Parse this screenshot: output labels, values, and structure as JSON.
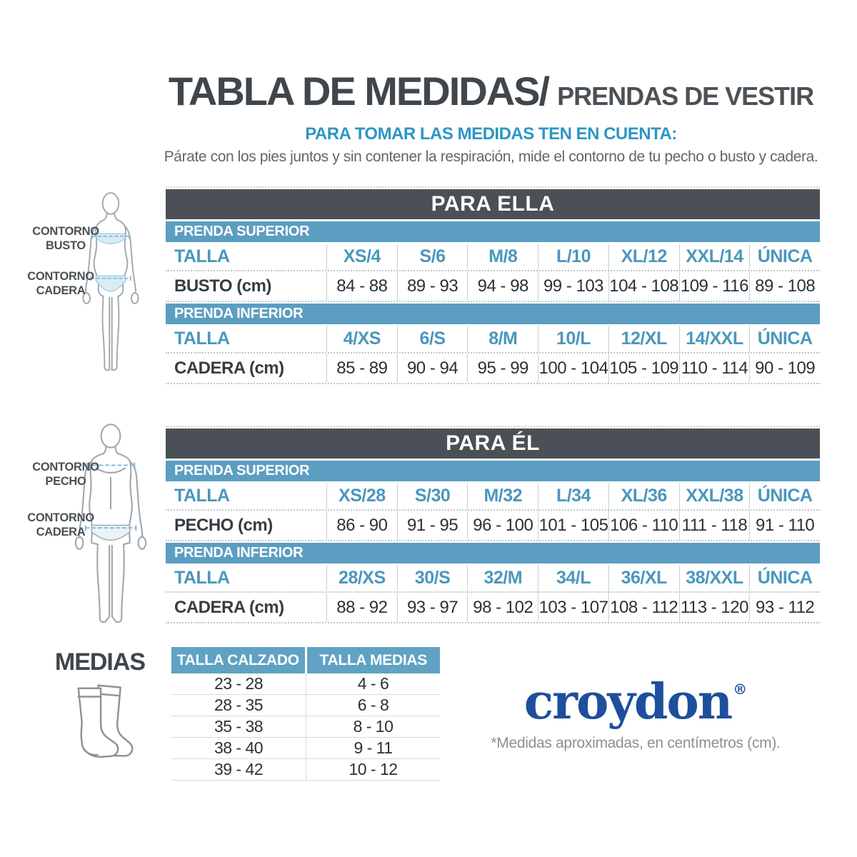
{
  "header": {
    "title_main": "TABLA DE MEDIDAS/",
    "title_sub": "PRENDAS DE VESTIR",
    "subtitle": "PARA TOMAR LAS MEDIDAS TEN EN CUENTA:",
    "description": "Párate con los pies juntos y sin contener la respiración, mide el contorno de tu pecho o busto y cadera."
  },
  "figures": {
    "female": {
      "bust_label": "CONTORNO BUSTO",
      "hip_label": "CONTORNO CADERA"
    },
    "male": {
      "chest_label": "CONTORNO PECHO",
      "hip_label": "CONTORNO CADERA"
    }
  },
  "para_ella": {
    "title": "PARA ELLA",
    "superior": {
      "band": "PRENDA SUPERIOR",
      "talla_label": "TALLA",
      "tallas": [
        "XS/4",
        "S/6",
        "M/8",
        "L/10",
        "XL/12",
        "XXL/14",
        "ÚNICA"
      ],
      "measure_label": "BUSTO (cm)",
      "values": [
        "84 - 88",
        "89 - 93",
        "94 - 98",
        "99 - 103",
        "104 - 108",
        "109 - 116",
        "89 - 108"
      ]
    },
    "inferior": {
      "band": "PRENDA INFERIOR",
      "talla_label": "TALLA",
      "tallas": [
        "4/XS",
        "6/S",
        "8/M",
        "10/L",
        "12/XL",
        "14/XXL",
        "ÚNICA"
      ],
      "measure_label": "CADERA (cm)",
      "values": [
        "85 - 89",
        "90 - 94",
        "95 - 99",
        "100 - 104",
        "105 - 109",
        "110 - 114",
        "90 - 109"
      ]
    }
  },
  "para_el": {
    "title": "PARA ÉL",
    "superior": {
      "band": "PRENDA SUPERIOR",
      "talla_label": "TALLA",
      "tallas": [
        "XS/28",
        "S/30",
        "M/32",
        "L/34",
        "XL/36",
        "XXL/38",
        "ÚNICA"
      ],
      "measure_label": "PECHO (cm)",
      "values": [
        "86 - 90",
        "91 - 95",
        "96 - 100",
        "101 - 105",
        "106 - 110",
        "111 - 118",
        "91 - 110"
      ]
    },
    "inferior": {
      "band": "PRENDA INFERIOR",
      "talla_label": "TALLA",
      "tallas": [
        "28/XS",
        "30/S",
        "32/M",
        "34/L",
        "36/XL",
        "38/XXL",
        "ÚNICA"
      ],
      "measure_label": "CADERA (cm)",
      "values": [
        "88 - 92",
        "93 - 97",
        "98 - 102",
        "103 - 107",
        "108 - 112",
        "113 - 120",
        "93 - 112"
      ]
    }
  },
  "medias": {
    "label": "MEDIAS",
    "headers": [
      "TALLA CALZADO",
      "TALLA MEDIAS"
    ],
    "rows": [
      {
        "calzado": "23 - 28",
        "medias": "4 - 6"
      },
      {
        "calzado": "28 - 35",
        "medias": "6 - 8"
      },
      {
        "calzado": "35 - 38",
        "medias": "8 - 10"
      },
      {
        "calzado": "38 - 40",
        "medias": "9 - 11"
      },
      {
        "calzado": "39 - 42",
        "medias": "10 - 12"
      }
    ]
  },
  "footer": {
    "brand": "croydon",
    "registered": "®",
    "note": "*Medidas aproximadas, en centímetros (cm)."
  },
  "colors": {
    "dark_band": "#4a5056",
    "blue_band": "#5b9ec1",
    "blue_text": "#4a97bd",
    "subtitle_blue": "#2d96c5",
    "title_dark": "#3f464c",
    "value_dark": "#2b3136",
    "brand_blue": "#1d4f9c",
    "note_gray": "#8b9094"
  }
}
